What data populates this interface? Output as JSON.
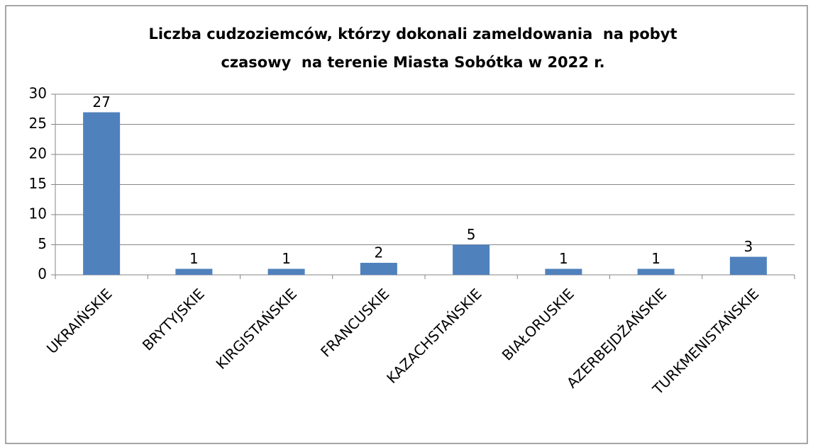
{
  "chart_data": {
    "type": "bar",
    "title": [
      "Liczba cudzoziemców, którzy dokonali zameldowania  na pobyt",
      "czasowy  na terenie Miasta Sobótka w 2022 r."
    ],
    "categories": [
      "UKRAIŃSKIE",
      "BRYTYJSKIE",
      "KIRGISTAŃSKIE",
      "FRANCUSKIE",
      "KAZACHSTAŃSKIE",
      "BIAŁORUSKIE",
      "AZERBEJDŻAŃSKIE",
      "TURKMENISTAŃSKIE"
    ],
    "values": [
      27,
      1,
      1,
      2,
      5,
      1,
      1,
      3
    ],
    "color": "#4f81bd",
    "ylim": [
      0,
      30
    ],
    "yticks": [
      0,
      5,
      10,
      15,
      20,
      25,
      30
    ],
    "grid": true
  }
}
